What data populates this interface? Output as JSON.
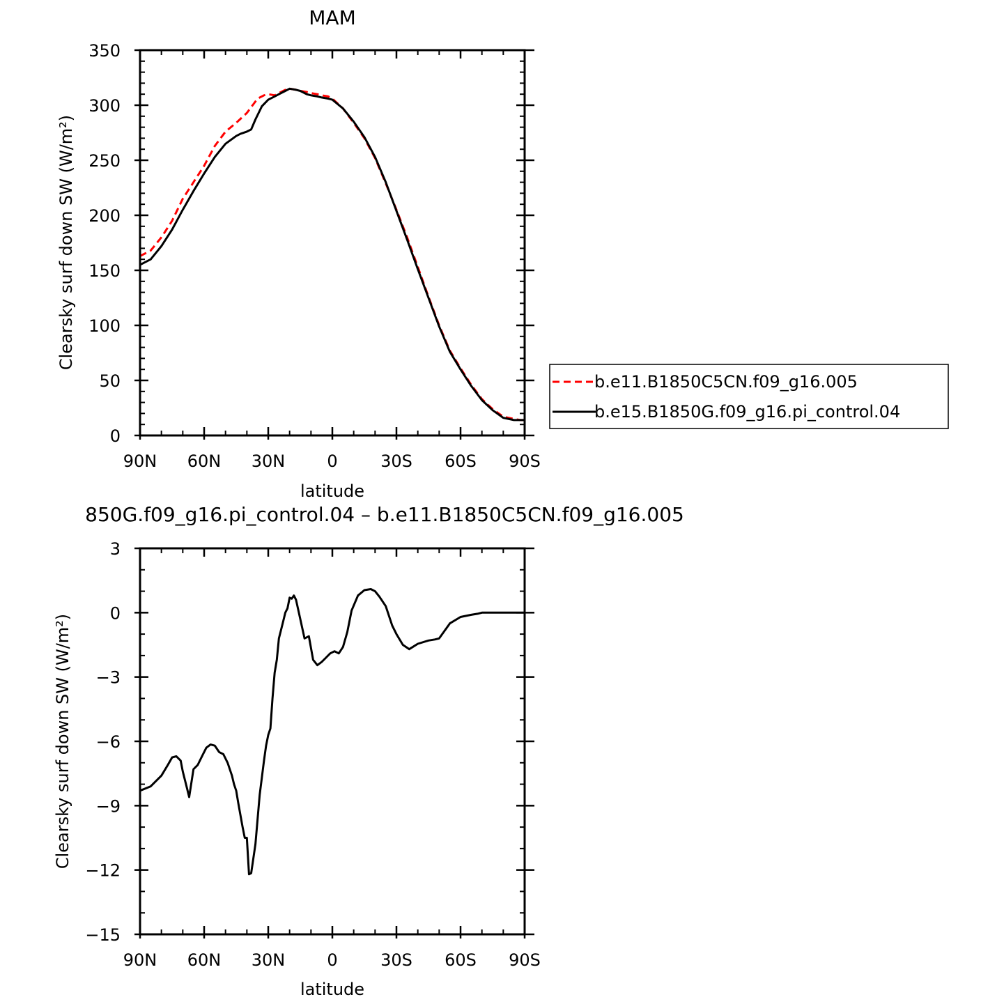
{
  "chart_data": [
    {
      "type": "line",
      "title": "MAM",
      "xlabel": "latitude",
      "ylabel": "Clearsky surf down SW (W/m²)",
      "xlim": [
        90,
        -90
      ],
      "ylim": [
        0,
        350
      ],
      "x_tick_values": [
        90,
        60,
        30,
        0,
        -30,
        -60,
        -90
      ],
      "x_tick_labels": [
        "90N",
        "60N",
        "30N",
        "0",
        "30S",
        "60S",
        "90S"
      ],
      "y_ticks": [
        0,
        50,
        100,
        150,
        200,
        250,
        300,
        350
      ],
      "grid": false,
      "legend": {
        "placement": "right",
        "entries": [
          "b.e11.B1850C5CN.f09_g16.005",
          "b.e15.B1850G.f09_g16.pi_control.04"
        ]
      },
      "series": [
        {
          "name": "b.e11.B1850C5CN.f09_g16.005",
          "color": "#ff0000",
          "dash": "dashed",
          "x": [
            90,
            85,
            80,
            75,
            70,
            65,
            60,
            55,
            50,
            45,
            40,
            35,
            32,
            30,
            27,
            25,
            22,
            20,
            17,
            15,
            12,
            10,
            7,
            5,
            2,
            0,
            -5,
            -10,
            -15,
            -20,
            -25,
            -30,
            -35,
            -40,
            -45,
            -50,
            -55,
            -60,
            -65,
            -70,
            -75,
            -80,
            -85,
            -88,
            -90
          ],
          "y": [
            163,
            168,
            180,
            195,
            215,
            230,
            245,
            263,
            276,
            284,
            293,
            306,
            309,
            310,
            309,
            311,
            314,
            315,
            314,
            313,
            312,
            311,
            310,
            309,
            308,
            306,
            297,
            284,
            270,
            252,
            229,
            205,
            180,
            153,
            126,
            100,
            77,
            61,
            46,
            33,
            24,
            17,
            15,
            14,
            14
          ]
        },
        {
          "name": "b.e15.B1850G.f09_g16.pi_control.04",
          "color": "#000000",
          "dash": "solid",
          "x": [
            90,
            85,
            80,
            75,
            70,
            65,
            60,
            55,
            50,
            45,
            43,
            40,
            38,
            36,
            33,
            30,
            27,
            25,
            22,
            20,
            17,
            15,
            12,
            10,
            7,
            5,
            2,
            0,
            -5,
            -10,
            -15,
            -20,
            -25,
            -30,
            -35,
            -40,
            -45,
            -50,
            -55,
            -60,
            -65,
            -70,
            -75,
            -80,
            -85,
            -88,
            -90
          ],
          "y": [
            155,
            160,
            172,
            187,
            205,
            222,
            238,
            253,
            265,
            272,
            274,
            276,
            278,
            287,
            299,
            305,
            308,
            310,
            313,
            315,
            314,
            313,
            310,
            309,
            308,
            307,
            306,
            305,
            297,
            285,
            271,
            253,
            230,
            204,
            178,
            151,
            125,
            99,
            76,
            60,
            45,
            32,
            23,
            16,
            14,
            14,
            14
          ]
        }
      ]
    },
    {
      "type": "line",
      "title": "850G.f09_g16.pi_control.04 – b.e11.B1850C5CN.f09_g16.005",
      "xlabel": "latitude",
      "ylabel": "Clearsky surf down SW (W/m²)",
      "xlim": [
        90,
        -90
      ],
      "ylim": [
        -15,
        3
      ],
      "x_tick_values": [
        90,
        60,
        30,
        0,
        -30,
        -60,
        -90
      ],
      "x_tick_labels": [
        "90N",
        "60N",
        "30N",
        "0",
        "30S",
        "60S",
        "90S"
      ],
      "y_ticks": [
        -15,
        -12,
        -9,
        -6,
        -3,
        0,
        3
      ],
      "y_tick_labels": [
        "−15",
        "−12",
        "−9",
        "−6",
        "−3",
        "0",
        "3"
      ],
      "grid": false,
      "series": [
        {
          "color": "#000000",
          "dash": "solid",
          "x": [
            90,
            85,
            80,
            77,
            75,
            73,
            71,
            70,
            68,
            67,
            65,
            63,
            61,
            59,
            57,
            55,
            53,
            51,
            49,
            47,
            46,
            45,
            44,
            42,
            41,
            40,
            39,
            38,
            36,
            34,
            32,
            31,
            30,
            29,
            28,
            27,
            26,
            25,
            24,
            23,
            22,
            21,
            20,
            19,
            18,
            17,
            15,
            13,
            11,
            9,
            7,
            5,
            3,
            1,
            -1,
            -3,
            -5,
            -7,
            -9,
            -12,
            -15,
            -18,
            -20,
            -22,
            -25,
            -28,
            -30,
            -33,
            -36,
            -40,
            -45,
            -48,
            -50,
            -55,
            -60,
            -65,
            -68,
            -70,
            -72,
            -75,
            -80,
            -85,
            -90
          ],
          "y": [
            -8.3,
            -8.1,
            -7.6,
            -7.1,
            -6.75,
            -6.7,
            -6.9,
            -7.4,
            -8.2,
            -8.6,
            -7.3,
            -7.1,
            -6.7,
            -6.3,
            -6.15,
            -6.2,
            -6.5,
            -6.6,
            -7.0,
            -7.6,
            -8.0,
            -8.3,
            -8.9,
            -10.0,
            -10.5,
            -10.5,
            -12.2,
            -12.15,
            -10.8,
            -8.5,
            -6.9,
            -6.2,
            -5.7,
            -5.4,
            -4.0,
            -2.8,
            -2.2,
            -1.2,
            -0.8,
            -0.4,
            0.0,
            0.2,
            0.7,
            0.65,
            0.8,
            0.6,
            -0.3,
            -1.2,
            -1.1,
            -2.2,
            -2.45,
            -2.3,
            -2.1,
            -1.9,
            -1.8,
            -1.9,
            -1.6,
            -0.9,
            0.1,
            0.8,
            1.05,
            1.1,
            1.0,
            0.75,
            0.3,
            -0.6,
            -1.0,
            -1.5,
            -1.7,
            -1.45,
            -1.3,
            -1.25,
            -1.2,
            -0.5,
            -0.2,
            -0.1,
            -0.05,
            0.0,
            0.0,
            0.0,
            0.0,
            0.0,
            0.0
          ]
        }
      ]
    }
  ]
}
